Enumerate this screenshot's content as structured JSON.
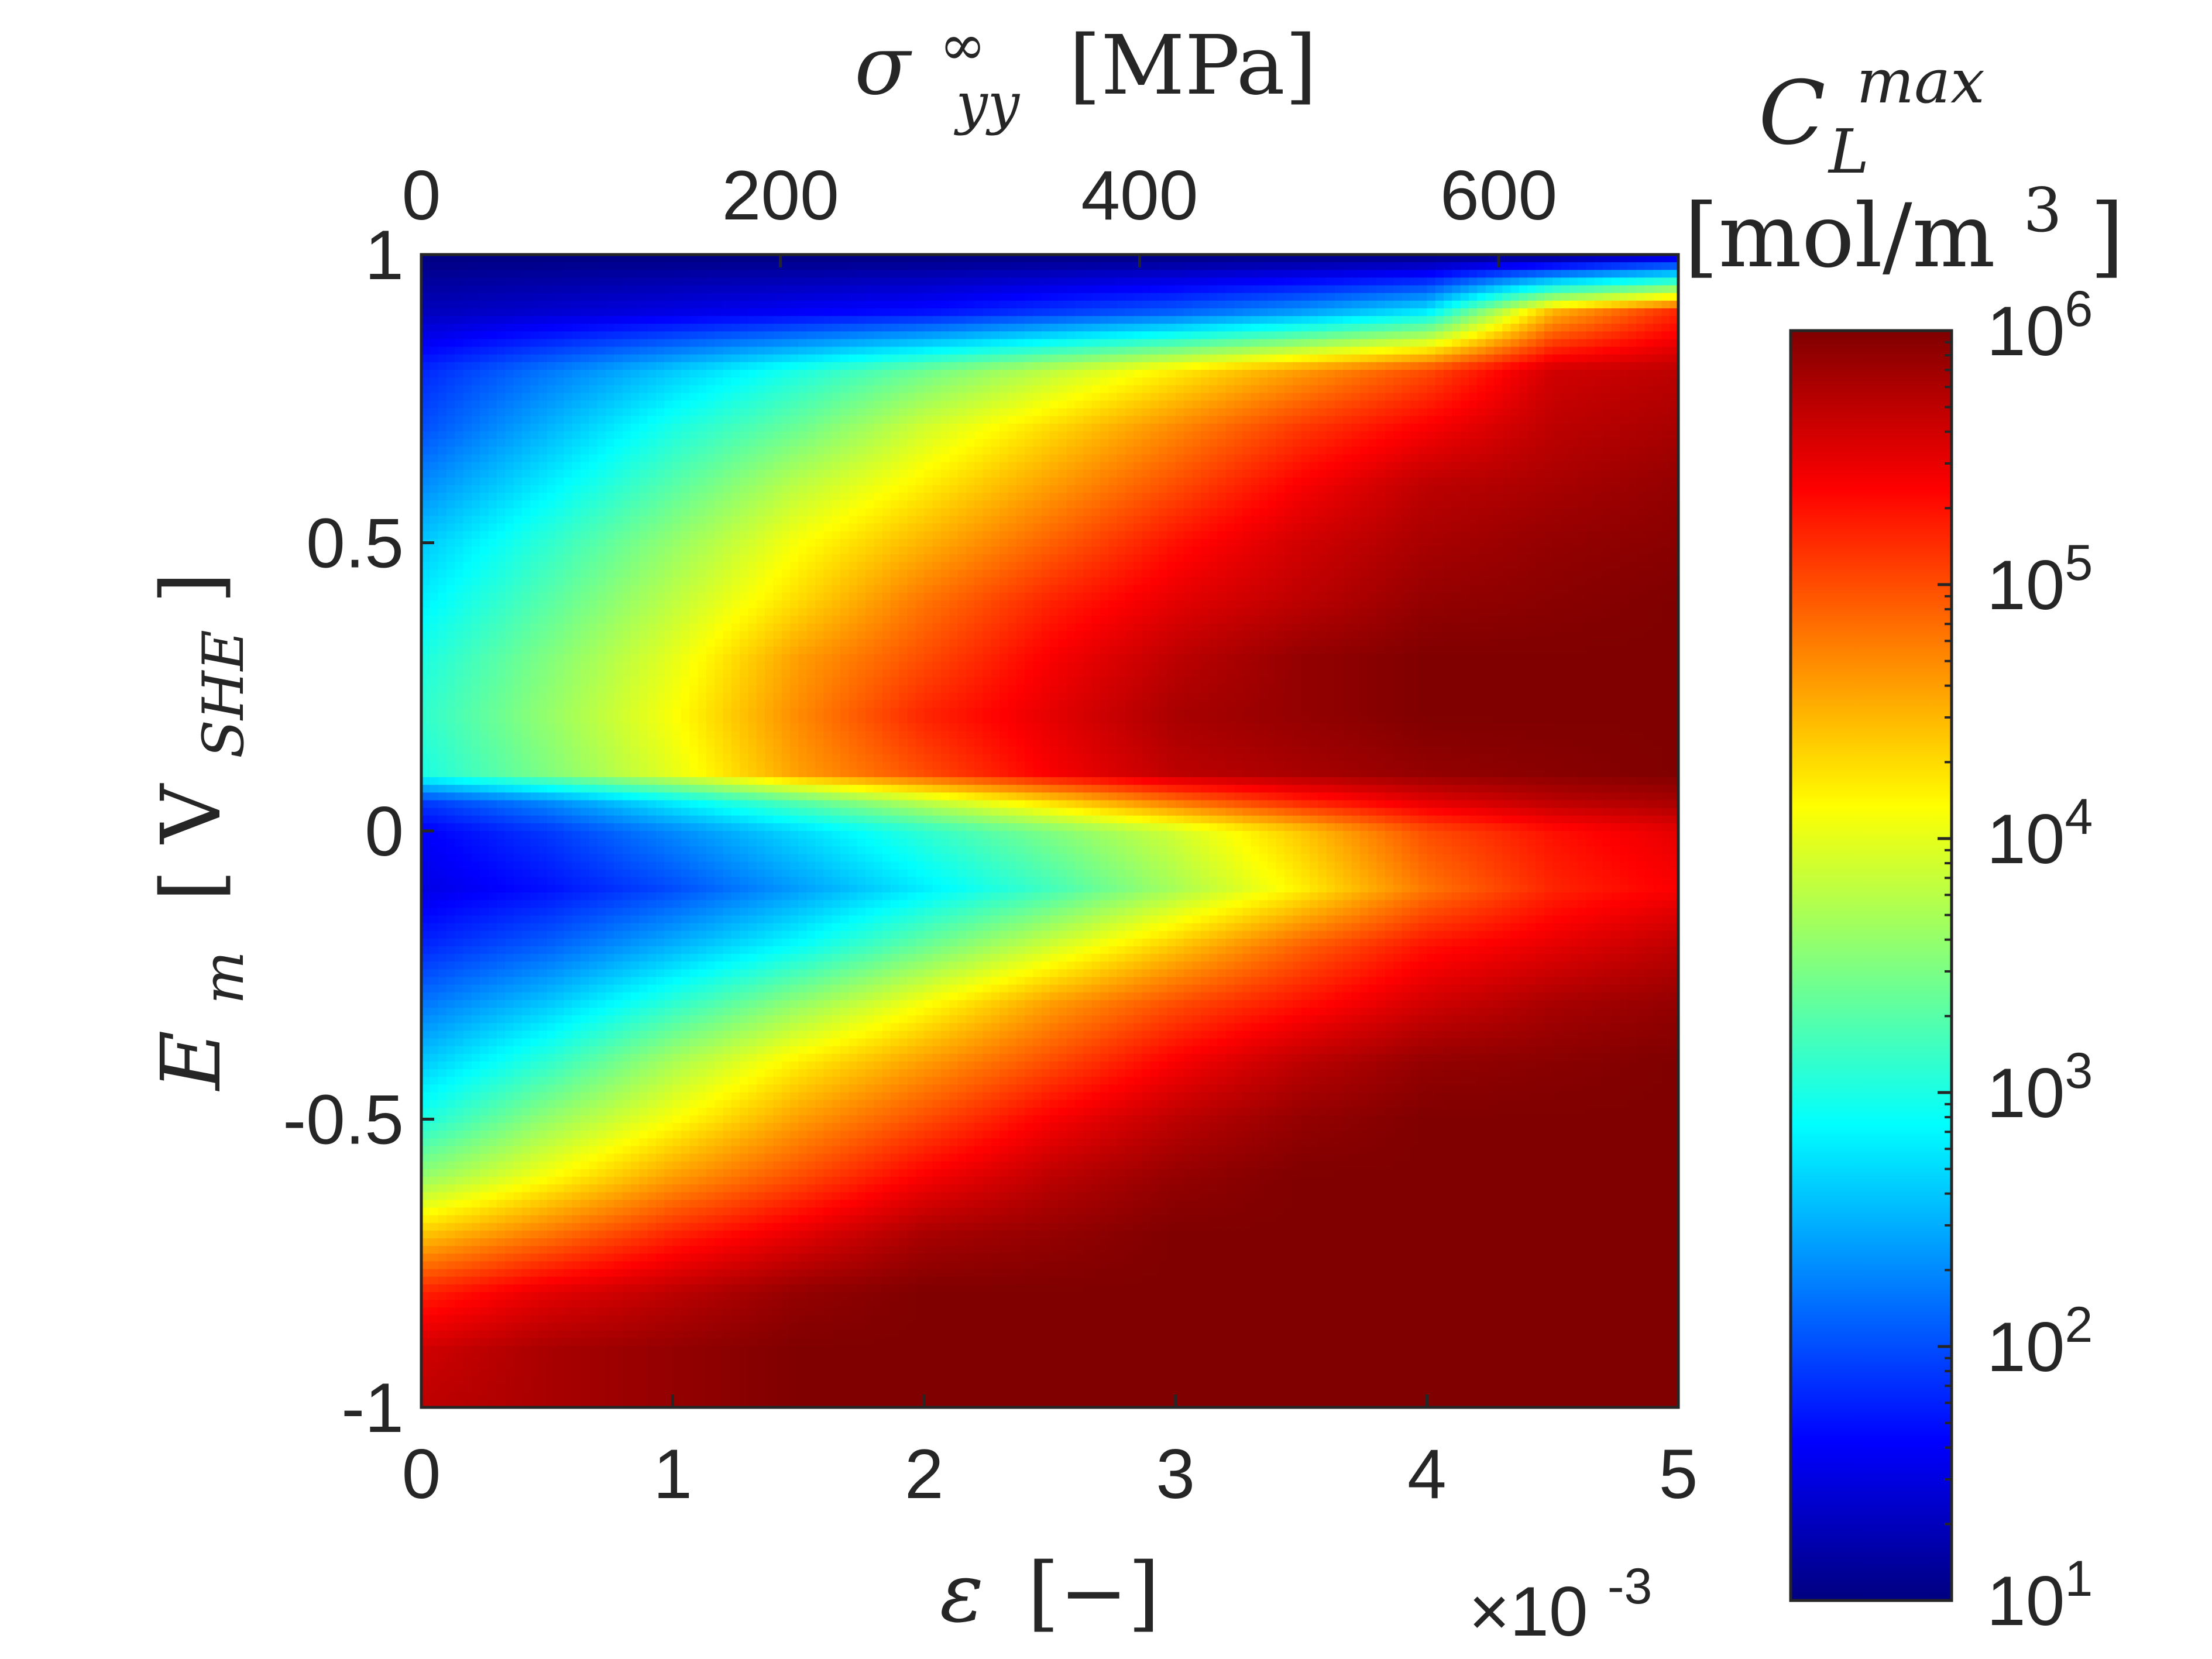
{
  "chart_data": {
    "type": "heatmap",
    "bottom_axis": {
      "label": "ε",
      "label_unit": "[−]",
      "lim": [
        0,
        5
      ],
      "ticks": [
        0,
        1,
        2,
        3,
        4,
        5
      ],
      "tick_labels": [
        "0",
        "1",
        "2",
        "3",
        "4",
        "5"
      ],
      "scale_note_base": "×10",
      "scale_note_exp": "-3"
    },
    "top_axis": {
      "label_symbol": "σ",
      "label_sup": "∞",
      "label_sub": "yy",
      "label_unit": "[MPa]",
      "lim": [
        0,
        700
      ],
      "ticks": [
        0,
        200,
        400,
        600
      ],
      "tick_labels": [
        "0",
        "200",
        "400",
        "600"
      ]
    },
    "left_axis": {
      "label_symbol": "E",
      "label_sub": "m",
      "label_unit_main": "V",
      "label_unit_sub": "SHE",
      "lim": [
        -1,
        1
      ],
      "ticks": [
        -1,
        -0.5,
        0,
        0.5,
        1
      ],
      "tick_labels": [
        "-1",
        "-0.5",
        "0",
        "0.5",
        "1"
      ]
    },
    "colorbar": {
      "title_symbol": "C",
      "title_sup": "max",
      "title_sub": "L",
      "title_unit": "[mol/m",
      "title_unit_sup": "3",
      "title_unit_close": "]",
      "scale": "log",
      "lim_log10": [
        1,
        6
      ],
      "ticks_log10": [
        1,
        2,
        3,
        4,
        5,
        6
      ],
      "tick_base": "10",
      "tick_exponents": [
        "1",
        "2",
        "3",
        "4",
        "5",
        "6"
      ],
      "colormap": "jet"
    },
    "field": {
      "description_free": false,
      "grid_strain": [
        0,
        0.5,
        1,
        1.5,
        2,
        2.5,
        3,
        3.5,
        4,
        4.5,
        5
      ],
      "grid_potential": [
        1,
        0.9,
        0.8,
        0.7,
        0.6,
        0.5,
        0.4,
        0.3,
        0.2,
        0.1,
        0.05,
        0,
        -0.1,
        -0.2,
        -0.3,
        -0.4,
        -0.5,
        -0.6,
        -0.7,
        -0.8,
        -0.9,
        -1
      ],
      "log10_values": [
        [
          1.0,
          1.0,
          1.0,
          1.0,
          1.0,
          1.0,
          1.0,
          1.0,
          1.0,
          1.0,
          1.3
        ],
        [
          1.3,
          1.4,
          1.5,
          1.6,
          1.7,
          1.9,
          2.1,
          2.4,
          2.8,
          4.5,
          5.2
        ],
        [
          1.8,
          2.2,
          2.6,
          3.0,
          3.4,
          3.8,
          4.2,
          4.6,
          5.0,
          5.6,
          5.7
        ],
        [
          2.0,
          2.5,
          3.0,
          3.4,
          3.9,
          4.3,
          4.7,
          5.1,
          5.4,
          5.7,
          5.8
        ],
        [
          2.3,
          2.8,
          3.3,
          3.8,
          4.2,
          4.6,
          5.0,
          5.4,
          5.7,
          5.8,
          5.9
        ],
        [
          2.6,
          3.1,
          3.6,
          4.1,
          4.5,
          4.9,
          5.3,
          5.6,
          5.8,
          5.9,
          5.95
        ],
        [
          2.8,
          3.3,
          3.8,
          4.3,
          4.8,
          5.2,
          5.5,
          5.7,
          5.9,
          5.95,
          6.0
        ],
        [
          3.0,
          3.5,
          4.0,
          4.6,
          5.0,
          5.4,
          5.7,
          5.9,
          6.0,
          6.0,
          6.0
        ],
        [
          3.1,
          3.6,
          4.1,
          4.7,
          5.2,
          5.5,
          5.8,
          5.9,
          6.0,
          6.0,
          6.0
        ],
        [
          3.0,
          3.5,
          4.0,
          4.6,
          5.0,
          5.4,
          5.7,
          5.8,
          5.9,
          5.95,
          6.0
        ],
        [
          1.9,
          2.3,
          2.8,
          3.3,
          3.8,
          4.3,
          4.8,
          5.2,
          5.5,
          5.7,
          5.8
        ],
        [
          1.6,
          1.9,
          2.3,
          2.7,
          3.1,
          3.5,
          3.9,
          4.4,
          5.0,
          5.3,
          5.5
        ],
        [
          1.5,
          1.7,
          2.0,
          2.4,
          2.8,
          3.2,
          3.7,
          4.2,
          4.8,
          5.2,
          5.4
        ],
        [
          1.8,
          2.1,
          2.5,
          2.9,
          3.4,
          3.9,
          4.4,
          4.9,
          5.3,
          5.5,
          5.7
        ],
        [
          2.2,
          2.6,
          3.1,
          3.6,
          4.1,
          4.6,
          5.0,
          5.3,
          5.6,
          5.8,
          5.9
        ],
        [
          2.6,
          3.1,
          3.7,
          4.2,
          4.6,
          5.0,
          5.4,
          5.7,
          5.9,
          5.95,
          6.0
        ],
        [
          3.0,
          3.6,
          4.1,
          4.6,
          5.0,
          5.4,
          5.7,
          5.9,
          6.0,
          6.0,
          6.0
        ],
        [
          3.6,
          4.1,
          4.6,
          5.0,
          5.4,
          5.7,
          5.9,
          6.0,
          6.0,
          6.0,
          6.0
        ],
        [
          4.4,
          4.8,
          5.2,
          5.5,
          5.8,
          5.9,
          6.0,
          6.0,
          6.0,
          6.0,
          6.0
        ],
        [
          5.2,
          5.5,
          5.7,
          5.9,
          6.0,
          6.0,
          6.0,
          6.0,
          6.0,
          6.0,
          6.0
        ],
        [
          5.6,
          5.8,
          5.9,
          6.0,
          6.0,
          6.0,
          6.0,
          6.0,
          6.0,
          6.0,
          6.0
        ],
        [
          5.7,
          5.8,
          5.9,
          6.0,
          6.0,
          6.0,
          6.0,
          6.0,
          6.0,
          6.0,
          6.0
        ]
      ]
    }
  }
}
